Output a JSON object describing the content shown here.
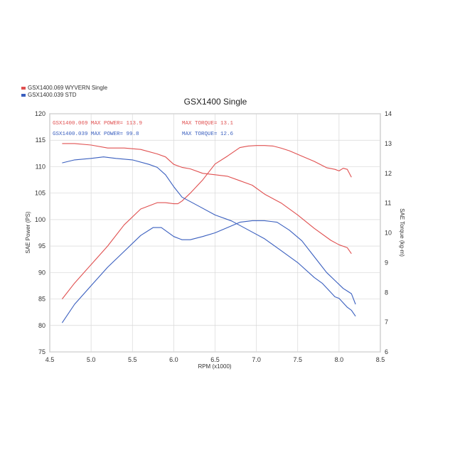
{
  "chart_data": {
    "type": "line",
    "title": "GSX1400 Single",
    "xlabel": "RPM (x1000)",
    "ylabel_left": "SAE Power (PS)",
    "ylabel_right": "SAE Torque (kg-m)",
    "xlim": [
      4.5,
      8.5
    ],
    "ylim_left": [
      75,
      120
    ],
    "ylim_right": [
      6,
      14
    ],
    "x_ticks": [
      "4.5",
      "5.0",
      "5.5",
      "6.0",
      "6.5",
      "7.0",
      "7.5",
      "8.0",
      "8.5"
    ],
    "y_left_ticks": [
      "75",
      "80",
      "85",
      "90",
      "95",
      "100",
      "105",
      "110",
      "115",
      "120"
    ],
    "y_right_ticks": [
      "6",
      "7",
      "8",
      "9",
      "10",
      "11",
      "12",
      "13",
      "14"
    ],
    "grid": true,
    "legend": [
      {
        "label": "GSX1400.069  WYVERN Single",
        "color": "#e05050"
      },
      {
        "label": "GSX1400.039  STD",
        "color": "#3a5fbf"
      }
    ],
    "annotations": [
      {
        "text": "GSX1400.069  MAX POWER= 113.9",
        "color": "#e05050",
        "pos": "top-left-1"
      },
      {
        "text": "MAX TORQUE= 13.1",
        "color": "#e05050",
        "pos": "top-mid-1"
      },
      {
        "text": "GSX1400.039  MAX POWER= 99.8",
        "color": "#3a5fbf",
        "pos": "top-left-2"
      },
      {
        "text": "MAX TORQUE= 12.6",
        "color": "#3a5fbf",
        "pos": "top-mid-2"
      }
    ],
    "series": [
      {
        "axis": "left",
        "color": "#e05050",
        "x": [
          4.65,
          4.8,
          5.0,
          5.2,
          5.4,
          5.6,
          5.8,
          5.9,
          6.0,
          6.05,
          6.1,
          6.2,
          6.35,
          6.5,
          6.65,
          6.8,
          6.9,
          7.0,
          7.1,
          7.2,
          7.3,
          7.4,
          7.55,
          7.7,
          7.85,
          7.95,
          8.0,
          8.05,
          8.1,
          8.15
        ],
        "y": [
          85,
          88,
          91.5,
          95,
          99,
          102,
          103.2,
          103.2,
          103,
          103,
          103.5,
          105,
          107.5,
          110.5,
          112,
          113.6,
          113.9,
          114,
          114,
          113.9,
          113.5,
          113,
          112,
          111,
          109.8,
          109.5,
          109.2,
          109.7,
          109.5,
          108
        ]
      },
      {
        "axis": "right",
        "color": "#e05050",
        "x": [
          4.65,
          4.8,
          5.0,
          5.2,
          5.4,
          5.6,
          5.8,
          5.9,
          6.0,
          6.1,
          6.2,
          6.35,
          6.5,
          6.65,
          6.8,
          6.95,
          7.1,
          7.3,
          7.5,
          7.7,
          7.9,
          8.0,
          8.1,
          8.15
        ],
        "y": [
          13.0,
          13.0,
          12.95,
          12.85,
          12.85,
          12.8,
          12.65,
          12.55,
          12.3,
          12.2,
          12.15,
          12.0,
          11.95,
          11.9,
          11.75,
          11.6,
          11.3,
          11.0,
          10.6,
          10.15,
          9.75,
          9.6,
          9.5,
          9.3
        ]
      },
      {
        "axis": "left",
        "color": "#3a5fbf",
        "x": [
          4.65,
          4.8,
          5.0,
          5.2,
          5.4,
          5.6,
          5.75,
          5.85,
          6.0,
          6.1,
          6.2,
          6.35,
          6.5,
          6.65,
          6.8,
          6.95,
          7.1,
          7.25,
          7.4,
          7.55,
          7.7,
          7.85,
          7.95,
          8.05,
          8.1,
          8.15,
          8.2
        ],
        "y": [
          80.5,
          84,
          87.5,
          91,
          94,
          97,
          98.5,
          98.5,
          96.8,
          96.2,
          96.2,
          96.8,
          97.5,
          98.5,
          99.5,
          99.8,
          99.8,
          99.5,
          98,
          96,
          93,
          90,
          88.5,
          87,
          86.5,
          86,
          84
        ]
      },
      {
        "axis": "right",
        "color": "#3a5fbf",
        "x": [
          4.65,
          4.8,
          5.0,
          5.15,
          5.3,
          5.5,
          5.7,
          5.8,
          5.9,
          6.0,
          6.1,
          6.3,
          6.5,
          6.7,
          6.9,
          7.1,
          7.3,
          7.5,
          7.7,
          7.8,
          7.9,
          7.95,
          8.0,
          8.1,
          8.15,
          8.2
        ],
        "y": [
          12.35,
          12.45,
          12.5,
          12.55,
          12.5,
          12.45,
          12.3,
          12.2,
          11.95,
          11.55,
          11.2,
          10.9,
          10.6,
          10.4,
          10.1,
          9.8,
          9.4,
          9.0,
          8.5,
          8.3,
          8.0,
          7.85,
          7.8,
          7.5,
          7.4,
          7.2
        ]
      }
    ]
  }
}
